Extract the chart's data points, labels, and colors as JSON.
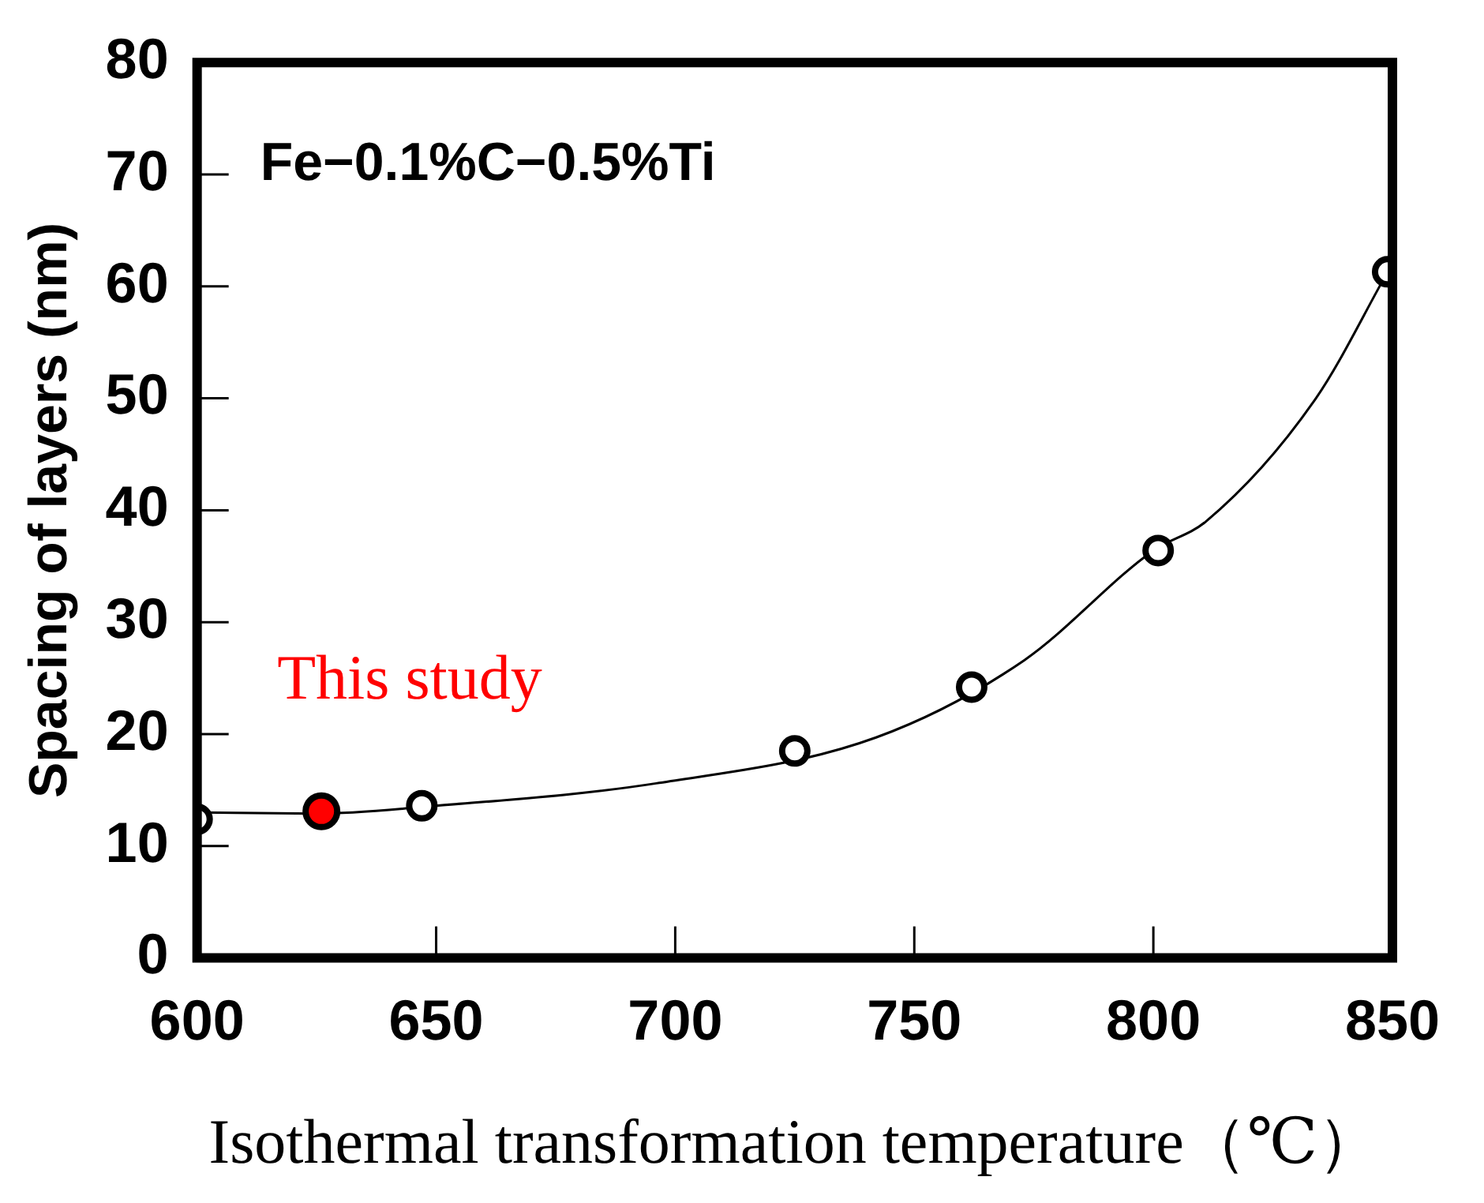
{
  "chart_data": {
    "type": "scatter",
    "xlabel": "Isothermal transformation temperature（℃）",
    "ylabel": "Spacing of layers (nm)",
    "annotations": [
      "Fe−0.1%C−0.5%Ti"
    ],
    "xlim": [
      600,
      850
    ],
    "xticks": [
      600,
      650,
      700,
      750,
      800,
      850
    ],
    "ylim": [
      0,
      80
    ],
    "yticks": [
      0,
      10,
      20,
      30,
      40,
      50,
      60,
      70,
      80
    ],
    "grid": false,
    "legend": false,
    "marker": "circle",
    "series": [
      {
        "type": "line",
        "color": "#000000",
        "marker": "none",
        "x": [
          600,
          625,
          650,
          696,
          742,
          773,
          800,
          811,
          834,
          849
        ],
        "values": [
          13,
          12.9,
          13.6,
          15.6,
          19.7,
          26.6,
          36.4,
          39,
          50,
          61.3
        ]
      },
      {
        "type": "scatter",
        "color": "#ffffff",
        "x": [
          600,
          647,
          725,
          762,
          801,
          849
        ],
        "values": [
          12.4,
          13.6,
          18.5,
          24.2,
          36.4,
          61.3
        ]
      },
      {
        "type": "scatter",
        "name": "This study",
        "color": "#ff0000",
        "x": [
          626
        ],
        "values": [
          13.1
        ]
      }
    ]
  }
}
